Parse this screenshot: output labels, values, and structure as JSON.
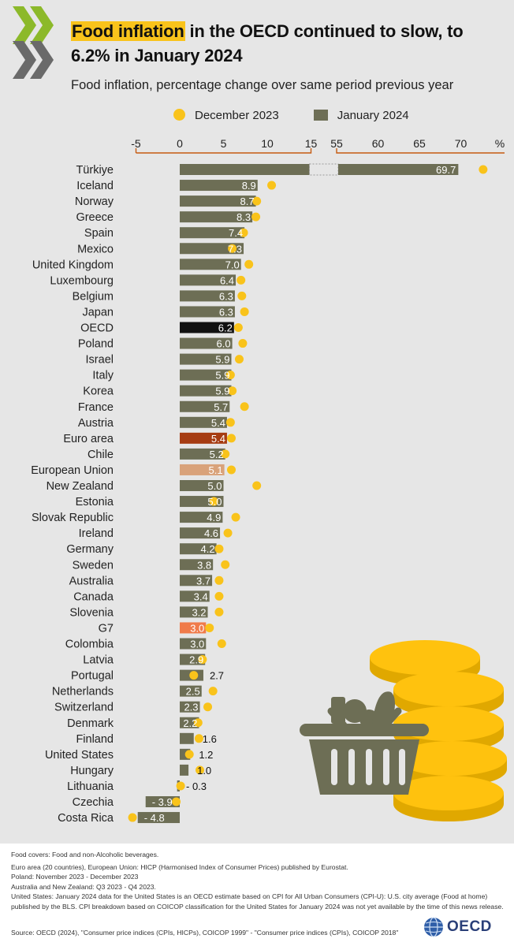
{
  "header": {
    "title_highlight": "Food inflation",
    "title_rest": " in the OECD continued to slow, to 6.2% in January 2024",
    "subtitle": "Food inflation, percentage change over same period previous year"
  },
  "legend": {
    "dec_label": "December 2023",
    "jan_label": "January 2024"
  },
  "colors": {
    "bar": "#6d6e55",
    "oecd": "#111111",
    "euro_area": "#a63c12",
    "european_union": "#d9a27a",
    "g7": "#f07b4a",
    "dot": "#f9c31b",
    "axis_line": "#c55a11",
    "panel": "#e6e6e6"
  },
  "chart_data": {
    "type": "bar",
    "orientation": "horizontal",
    "unit": "%",
    "axis_break": [
      15,
      55
    ],
    "xlim": [
      -5,
      75
    ],
    "ticks_left": [
      "-5",
      "0",
      "5",
      "10",
      "15"
    ],
    "ticks_right": [
      "55",
      "60",
      "65",
      "70"
    ],
    "unit_label": "%",
    "series": [
      {
        "name": "January 2024",
        "style": "bar"
      },
      {
        "name": "December 2023",
        "style": "dot"
      }
    ],
    "rows": [
      {
        "country": "Türkiye",
        "jan": 69.7,
        "dec": 72.7,
        "label": "69.7"
      },
      {
        "country": "Iceland",
        "jan": 8.9,
        "dec": 10.5,
        "label": "8.9"
      },
      {
        "country": "Norway",
        "jan": 8.7,
        "dec": 8.8,
        "label": "8.7"
      },
      {
        "country": "Greece",
        "jan": 8.3,
        "dec": 8.7,
        "label": "8.3"
      },
      {
        "country": "Spain",
        "jan": 7.4,
        "dec": 7.3,
        "label": "7.4"
      },
      {
        "country": "Mexico",
        "jan": 7.3,
        "dec": 6.0,
        "label": "7.3"
      },
      {
        "country": "United Kingdom",
        "jan": 7.0,
        "dec": 7.9,
        "label": "7.0"
      },
      {
        "country": "Luxembourg",
        "jan": 6.4,
        "dec": 7.0,
        "label": "6.4"
      },
      {
        "country": "Belgium",
        "jan": 6.3,
        "dec": 7.1,
        "label": "6.3"
      },
      {
        "country": "Japan",
        "jan": 6.3,
        "dec": 7.4,
        "label": "6.3"
      },
      {
        "country": "OECD",
        "jan": 6.2,
        "dec": 6.7,
        "label": "6.2",
        "highlight": "oecd"
      },
      {
        "country": "Poland",
        "jan": 6.0,
        "dec": 7.2,
        "label": "6.0"
      },
      {
        "country": "Israel",
        "jan": 5.9,
        "dec": 6.8,
        "label": "5.9"
      },
      {
        "country": "Italy",
        "jan": 5.9,
        "dec": 5.8,
        "label": "5.9"
      },
      {
        "country": "Korea",
        "jan": 5.9,
        "dec": 6.0,
        "label": "5.9"
      },
      {
        "country": "France",
        "jan": 5.7,
        "dec": 7.4,
        "label": "5.7"
      },
      {
        "country": "Austria",
        "jan": 5.4,
        "dec": 5.8,
        "label": "5.4"
      },
      {
        "country": "Euro area",
        "jan": 5.4,
        "dec": 5.9,
        "label": "5.4",
        "highlight": "euro_area"
      },
      {
        "country": "Chile",
        "jan": 5.2,
        "dec": 5.2,
        "label": "5.2"
      },
      {
        "country": "European Union",
        "jan": 5.1,
        "dec": 5.9,
        "label": "5.1",
        "highlight": "european_union"
      },
      {
        "country": "New Zealand",
        "jan": 5.0,
        "dec": 8.8,
        "label": "5.0"
      },
      {
        "country": "Estonia",
        "jan": 5.0,
        "dec": 3.9,
        "label": "5.0"
      },
      {
        "country": "Slovak Republic",
        "jan": 4.9,
        "dec": 6.4,
        "label": "4.9"
      },
      {
        "country": "Ireland",
        "jan": 4.6,
        "dec": 5.5,
        "label": "4.6"
      },
      {
        "country": "Germany",
        "jan": 4.2,
        "dec": 4.5,
        "label": "4.2"
      },
      {
        "country": "Sweden",
        "jan": 3.8,
        "dec": 5.2,
        "label": "3.8"
      },
      {
        "country": "Australia",
        "jan": 3.7,
        "dec": 4.5,
        "label": "3.7"
      },
      {
        "country": "Canada",
        "jan": 3.4,
        "dec": 4.5,
        "label": "3.4"
      },
      {
        "country": "Slovenia",
        "jan": 3.2,
        "dec": 4.5,
        "label": "3.2"
      },
      {
        "country": "G7",
        "jan": 3.0,
        "dec": 3.4,
        "label": "3.0",
        "highlight": "g7"
      },
      {
        "country": "Colombia",
        "jan": 3.0,
        "dec": 4.8,
        "label": "3.0"
      },
      {
        "country": "Latvia",
        "jan": 2.9,
        "dec": 2.6,
        "label": "2.9"
      },
      {
        "country": "Portugal",
        "jan": 2.7,
        "dec": 1.6,
        "label": "2.7"
      },
      {
        "country": "Netherlands",
        "jan": 2.5,
        "dec": 3.8,
        "label": "2.5"
      },
      {
        "country": "Switzerland",
        "jan": 2.3,
        "dec": 3.2,
        "label": "2.3"
      },
      {
        "country": "Denmark",
        "jan": 2.2,
        "dec": 2.1,
        "label": "2.2"
      },
      {
        "country": "Finland",
        "jan": 1.6,
        "dec": 2.2,
        "label": "1.6"
      },
      {
        "country": "United States",
        "jan": 1.2,
        "dec": 1.1,
        "label": "1.2"
      },
      {
        "country": "Hungary",
        "jan": 1.0,
        "dec": 2.3,
        "label": "1.0"
      },
      {
        "country": "Lithuania",
        "jan": -0.3,
        "dec": 0.1,
        "label": "- 0.3"
      },
      {
        "country": "Czechia",
        "jan": -3.9,
        "dec": -0.4,
        "label": "- 3.9"
      },
      {
        "country": "Costa Rica",
        "jan": -4.8,
        "dec": -5.4,
        "label": "- 4.8"
      }
    ]
  },
  "notes": {
    "line1": "Food covers: Food and non-Alcoholic beverages.",
    "line2": "Euro area (20 countries), European Union: HICP (Harmonised Index of Consumer Prices) published by Eurostat.",
    "line3": "Poland: November 2023 - December 2023",
    "line4": "Australia and New Zealand: Q3 2023 - Q4 2023.",
    "line5": "United States: January 2024 data for the United States is an OECD estimate based on CPI for All Urban Consumers (CPI-U): U.S. city average (Food at home) published by the BLS. CPI breakdown based on COICOP classification for the United States for January 2024 was not yet available by the time of this news release."
  },
  "source": "Source: OECD (2024), \"Consumer price indices (CPIs, HICPs), COICOP 1999\" - \"Consumer price indices (CPIs), COICOP 2018\"",
  "brand": {
    "wordmark": "OECD",
    "illustration": "coins-and-food-basket",
    "logo_icon": "oecd-chevrons-icon",
    "globe_icon": "oecd-globe-icon"
  }
}
